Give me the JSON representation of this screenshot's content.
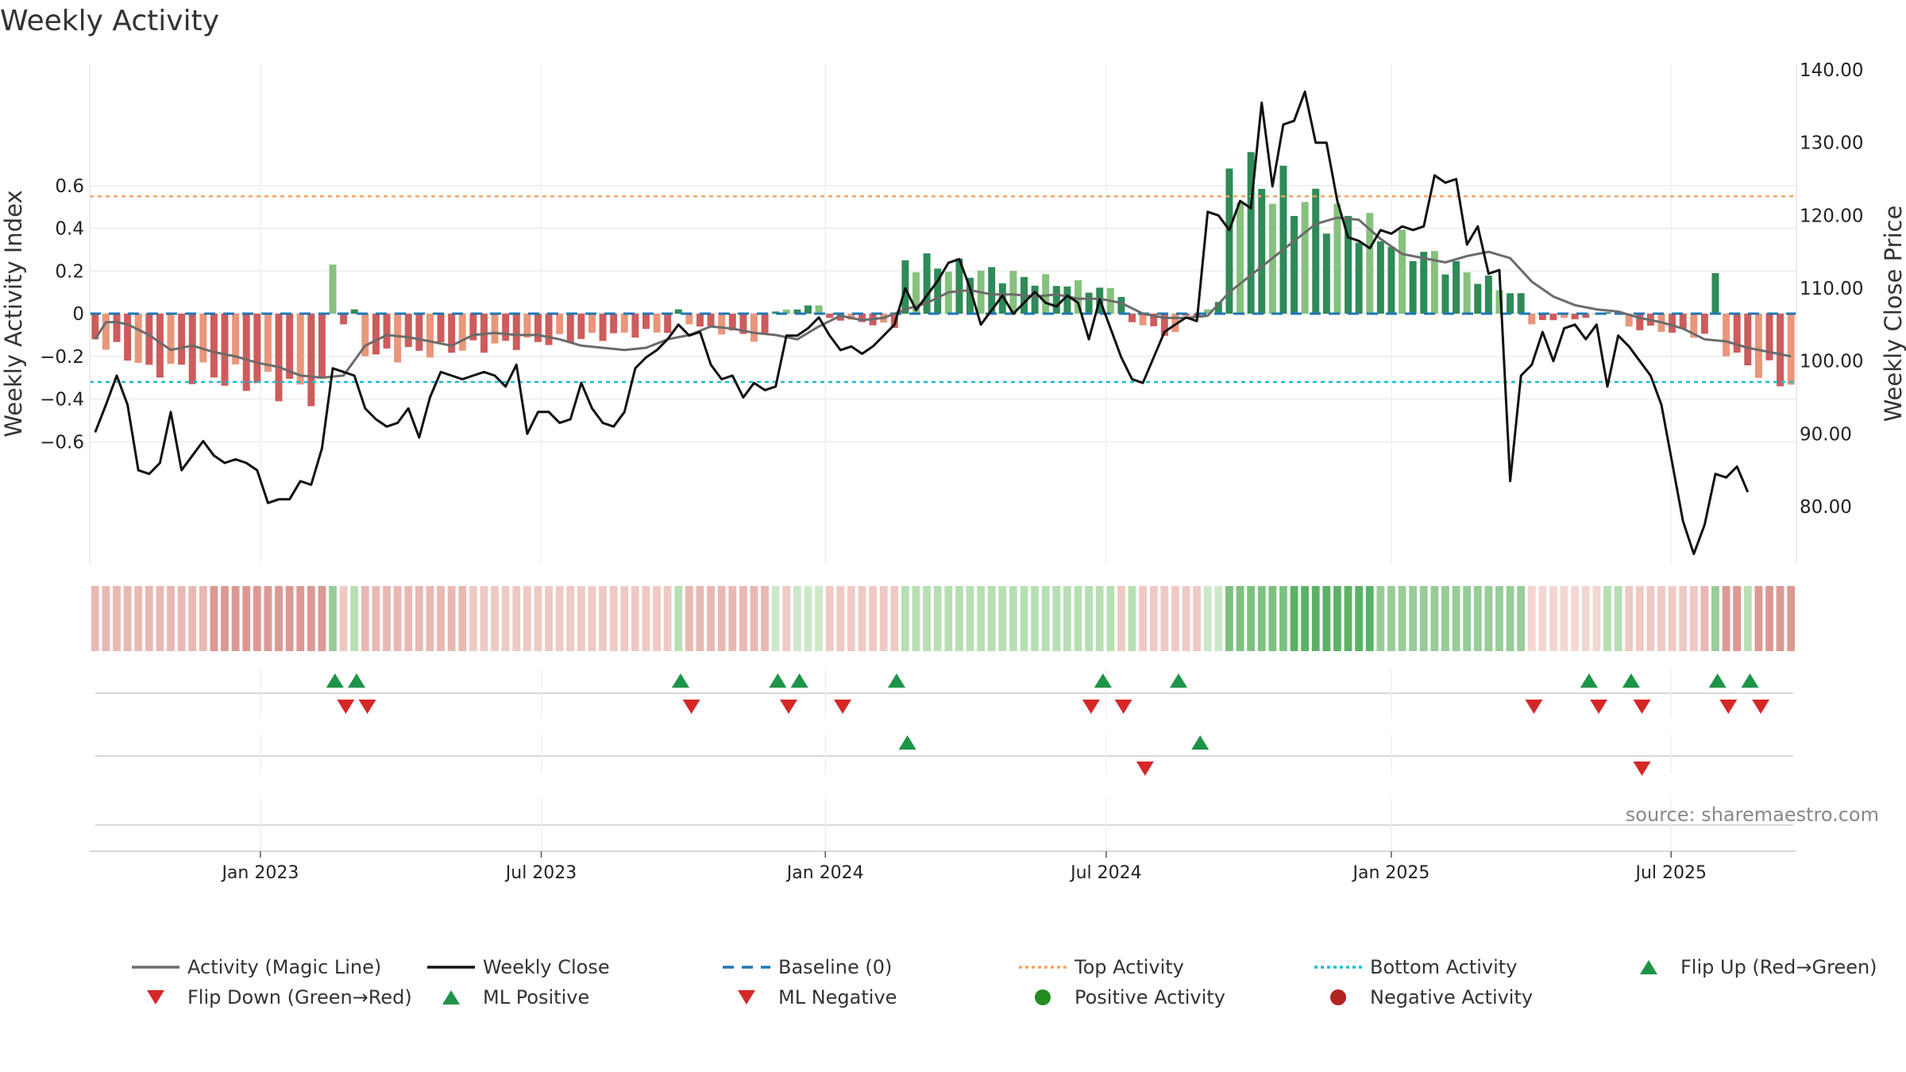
{
  "title": "Weekly Activity",
  "source": "source: sharemaestro.com",
  "colors": {
    "pos_strong": "#2e8b57",
    "pos_light": "#86c17d",
    "neg_strong": "#cd5c5c",
    "neg_light": "#e9967a",
    "magic_line": "#6b6b6b",
    "close_line": "#111111",
    "baseline": "#1f77b4",
    "top_line": "#f4a460",
    "bottom_line": "#17becf",
    "flip_up": "#1e9448",
    "flip_down": "#d62728",
    "pos_dot": "#228b22",
    "neg_dot": "#b22222"
  },
  "chart_data": {
    "type": "bar",
    "title": "Weekly Activity",
    "ylabel_left": "Weekly Activity Index",
    "ylabel_right": "Weekly Close Price",
    "ylim_left": [
      -0.73,
      0.73
    ],
    "ylim_right": [
      71,
      141
    ],
    "yticks_left": [
      "0.6",
      "0.4",
      "0.2",
      "0",
      "−0.2",
      "−0.4",
      "−0.6"
    ],
    "yticks_left_values": [
      0.6,
      0.4,
      0.2,
      0,
      -0.2,
      -0.4,
      -0.6
    ],
    "yticks_right": [
      "140.00",
      "130.00",
      "120.00",
      "110.00",
      "100.00",
      "90.00",
      "80.00"
    ],
    "yticks_right_values": [
      140,
      130,
      120,
      110,
      100,
      90,
      80
    ],
    "x_start_week": "2022-09-26",
    "week_count": 158,
    "xticks": [
      {
        "label": "Jan 2023",
        "week": 15.3
      },
      {
        "label": "Jul 2023",
        "week": 41.3
      },
      {
        "label": "Jan 2024",
        "week": 67.6
      },
      {
        "label": "Jul 2024",
        "week": 93.6
      },
      {
        "label": "Jan 2025",
        "week": 120.0
      },
      {
        "label": "Jul 2025",
        "week": 145.9
      }
    ],
    "top_activity": 0.55,
    "bottom_activity": -0.32,
    "baseline": 0,
    "segments": [
      {
        "from": 0,
        "to": 4,
        "start": -0.12,
        "end": -0.22
      },
      {
        "from": 5,
        "to": 21,
        "start": -0.24,
        "end": -0.37
      },
      {
        "from": 22,
        "to": 22,
        "start": 0.23,
        "end": 0.23
      },
      {
        "from": 23,
        "to": 23,
        "start": -0.05,
        "end": -0.05
      },
      {
        "from": 24,
        "to": 24,
        "start": 0.02,
        "end": 0.02
      },
      {
        "from": 25,
        "to": 53,
        "start": -0.2,
        "end": -0.08
      },
      {
        "from": 54,
        "to": 54,
        "start": 0.02,
        "end": 0.02
      },
      {
        "from": 55,
        "to": 62,
        "start": -0.05,
        "end": -0.12
      },
      {
        "from": 63,
        "to": 67,
        "start": 0.01,
        "end": 0.04
      },
      {
        "from": 68,
        "to": 74,
        "start": -0.02,
        "end": -0.06
      },
      {
        "from": 75,
        "to": 95,
        "start": 0.25,
        "end": 0.1
      },
      {
        "from": 96,
        "to": 100,
        "start": -0.04,
        "end": -0.1
      },
      {
        "from": 101,
        "to": 102,
        "start": -0.01,
        "end": -0.01
      },
      {
        "from": 103,
        "to": 104,
        "start": 0.02,
        "end": 0.05
      },
      {
        "from": 105,
        "to": 132,
        "start": 0.68,
        "end": 0.08
      },
      {
        "from": 133,
        "to": 133,
        "start": -0.05,
        "end": -0.05
      },
      {
        "from": 134,
        "to": 138,
        "start": -0.03,
        "end": -0.02
      },
      {
        "from": 139,
        "to": 141,
        "start": 0.0,
        "end": 0.01
      },
      {
        "from": 142,
        "to": 149,
        "start": -0.06,
        "end": -0.1
      },
      {
        "from": 150,
        "to": 150,
        "start": 0.19,
        "end": 0.19
      },
      {
        "from": 151,
        "to": 157,
        "start": -0.2,
        "end": -0.32
      }
    ],
    "magic_line": [
      [
        0,
        -0.12
      ],
      [
        1,
        -0.04
      ],
      [
        2,
        -0.04
      ],
      [
        3,
        -0.05
      ],
      [
        5,
        -0.1
      ],
      [
        7,
        -0.17
      ],
      [
        9,
        -0.15
      ],
      [
        11,
        -0.18
      ],
      [
        13,
        -0.2
      ],
      [
        15,
        -0.23
      ],
      [
        17,
        -0.25
      ],
      [
        19,
        -0.29
      ],
      [
        21,
        -0.3
      ],
      [
        23,
        -0.29
      ],
      [
        25,
        -0.15
      ],
      [
        27,
        -0.1
      ],
      [
        29,
        -0.11
      ],
      [
        31,
        -0.13
      ],
      [
        33,
        -0.15
      ],
      [
        35,
        -0.1
      ],
      [
        37,
        -0.09
      ],
      [
        39,
        -0.1
      ],
      [
        41,
        -0.1
      ],
      [
        43,
        -0.12
      ],
      [
        45,
        -0.15
      ],
      [
        47,
        -0.16
      ],
      [
        49,
        -0.17
      ],
      [
        51,
        -0.16
      ],
      [
        53,
        -0.12
      ],
      [
        55,
        -0.1
      ],
      [
        57,
        -0.06
      ],
      [
        59,
        -0.07
      ],
      [
        61,
        -0.09
      ],
      [
        63,
        -0.1
      ],
      [
        65,
        -0.12
      ],
      [
        67,
        -0.06
      ],
      [
        69,
        -0.01
      ],
      [
        71,
        -0.03
      ],
      [
        73,
        -0.02
      ],
      [
        75,
        0.02
      ],
      [
        77,
        0.05
      ],
      [
        79,
        0.1
      ],
      [
        81,
        0.11
      ],
      [
        83,
        0.09
      ],
      [
        85,
        0.09
      ],
      [
        87,
        0.08
      ],
      [
        89,
        0.09
      ],
      [
        91,
        0.07
      ],
      [
        93,
        0.07
      ],
      [
        95,
        0.05
      ],
      [
        97,
        0.0
      ],
      [
        99,
        -0.02
      ],
      [
        101,
        -0.02
      ],
      [
        103,
        -0.01
      ],
      [
        105,
        0.1
      ],
      [
        107,
        0.18
      ],
      [
        109,
        0.26
      ],
      [
        111,
        0.34
      ],
      [
        113,
        0.42
      ],
      [
        115,
        0.45
      ],
      [
        117,
        0.44
      ],
      [
        119,
        0.35
      ],
      [
        121,
        0.28
      ],
      [
        123,
        0.26
      ],
      [
        125,
        0.24
      ],
      [
        127,
        0.27
      ],
      [
        129,
        0.29
      ],
      [
        131,
        0.26
      ],
      [
        133,
        0.15
      ],
      [
        135,
        0.08
      ],
      [
        137,
        0.04
      ],
      [
        139,
        0.02
      ],
      [
        141,
        0.01
      ],
      [
        143,
        -0.02
      ],
      [
        145,
        -0.04
      ],
      [
        147,
        -0.07
      ],
      [
        149,
        -0.12
      ],
      [
        151,
        -0.13
      ],
      [
        153,
        -0.16
      ],
      [
        155,
        -0.18
      ],
      [
        157,
        -0.2
      ]
    ],
    "weekly_close": [
      [
        0,
        90.2
      ],
      [
        1,
        94
      ],
      [
        2,
        98
      ],
      [
        3,
        94
      ],
      [
        4,
        85
      ],
      [
        5,
        84.5
      ],
      [
        6,
        86
      ],
      [
        7,
        93
      ],
      [
        8,
        85
      ],
      [
        9,
        87
      ],
      [
        10,
        89
      ],
      [
        11,
        87
      ],
      [
        12,
        86
      ],
      [
        13,
        86.5
      ],
      [
        14,
        86
      ],
      [
        15,
        85
      ],
      [
        16,
        80.5
      ],
      [
        17,
        81
      ],
      [
        18,
        81
      ],
      [
        19,
        83.5
      ],
      [
        20,
        83
      ],
      [
        21,
        88
      ],
      [
        22,
        99
      ],
      [
        23,
        98.5
      ],
      [
        24,
        98
      ],
      [
        25,
        93.5
      ],
      [
        26,
        92
      ],
      [
        27,
        91
      ],
      [
        28,
        91.5
      ],
      [
        29,
        93.5
      ],
      [
        30,
        89.5
      ],
      [
        31,
        95
      ],
      [
        32,
        98.5
      ],
      [
        33,
        98
      ],
      [
        34,
        97.5
      ],
      [
        35,
        98
      ],
      [
        36,
        98.5
      ],
      [
        37,
        98
      ],
      [
        38,
        96.5
      ],
      [
        39,
        99.5
      ],
      [
        40,
        90
      ],
      [
        41,
        93
      ],
      [
        42,
        93
      ],
      [
        43,
        91.5
      ],
      [
        44,
        92
      ],
      [
        45,
        97
      ],
      [
        46,
        93.5
      ],
      [
        47,
        91.5
      ],
      [
        48,
        91
      ],
      [
        49,
        93
      ],
      [
        50,
        99
      ],
      [
        51,
        100.5
      ],
      [
        52,
        101.5
      ],
      [
        53,
        103
      ],
      [
        54,
        105
      ],
      [
        55,
        103.5
      ],
      [
        56,
        104
      ],
      [
        57,
        99.5
      ],
      [
        58,
        97.5
      ],
      [
        59,
        98
      ],
      [
        60,
        95
      ],
      [
        61,
        97
      ],
      [
        62,
        96
      ],
      [
        63,
        96.5
      ],
      [
        64,
        103.5
      ],
      [
        65,
        103.5
      ],
      [
        66,
        104.5
      ],
      [
        67,
        106
      ],
      [
        68,
        103.5
      ],
      [
        69,
        101.5
      ],
      [
        70,
        102
      ],
      [
        71,
        101
      ],
      [
        72,
        102
      ],
      [
        73,
        103.5
      ],
      [
        74,
        105
      ],
      [
        75,
        110
      ],
      [
        76,
        107
      ],
      [
        77,
        109
      ],
      [
        78,
        111
      ],
      [
        79,
        113.5
      ],
      [
        80,
        114
      ],
      [
        81,
        110
      ],
      [
        82,
        105
      ],
      [
        83,
        107
      ],
      [
        84,
        109
      ],
      [
        85,
        106.5
      ],
      [
        86,
        108
      ],
      [
        87,
        109.5
      ],
      [
        88,
        108
      ],
      [
        89,
        107.5
      ],
      [
        90,
        109
      ],
      [
        91,
        108
      ],
      [
        92,
        103
      ],
      [
        93,
        108.5
      ],
      [
        94,
        104.5
      ],
      [
        95,
        100.5
      ],
      [
        96,
        97.5
      ],
      [
        97,
        97
      ],
      [
        98,
        100.5
      ],
      [
        99,
        104
      ],
      [
        100,
        105
      ],
      [
        101,
        106
      ],
      [
        102,
        105.5
      ],
      [
        103,
        120.5
      ],
      [
        104,
        120
      ],
      [
        105,
        118
      ],
      [
        106,
        122
      ],
      [
        107,
        121
      ],
      [
        108,
        135.5
      ],
      [
        109,
        124
      ],
      [
        110,
        132.5
      ],
      [
        111,
        133
      ],
      [
        112,
        137
      ],
      [
        113,
        130
      ],
      [
        114,
        130
      ],
      [
        115,
        122
      ],
      [
        116,
        117
      ],
      [
        117,
        116.5
      ],
      [
        118,
        115.5
      ],
      [
        119,
        118
      ],
      [
        120,
        117.5
      ],
      [
        121,
        118.5
      ],
      [
        122,
        118
      ],
      [
        123,
        118.5
      ],
      [
        124,
        125.5
      ],
      [
        125,
        124.5
      ],
      [
        126,
        125
      ],
      [
        127,
        116
      ],
      [
        128,
        118.5
      ],
      [
        129,
        112
      ],
      [
        130,
        112.5
      ],
      [
        131,
        83.5
      ],
      [
        132,
        98
      ],
      [
        133,
        99.5
      ],
      [
        134,
        104
      ],
      [
        135,
        100
      ],
      [
        136,
        104.5
      ],
      [
        137,
        105
      ],
      [
        138,
        103
      ],
      [
        139,
        105
      ],
      [
        140,
        96.5
      ],
      [
        141,
        103.5
      ],
      [
        142,
        102
      ],
      [
        143,
        100
      ],
      [
        144,
        98
      ],
      [
        145,
        94
      ],
      [
        146,
        86
      ],
      [
        147,
        78
      ],
      [
        148,
        73.5
      ],
      [
        149,
        77.5
      ],
      [
        150,
        84.5
      ],
      [
        151,
        84
      ],
      [
        152,
        85.5
      ],
      [
        153,
        82
      ]
    ],
    "strip_tiles": [
      {
        "from": 0,
        "to": 10,
        "color": "#e9b8b3"
      },
      {
        "from": 11,
        "to": 21,
        "color": "#dc9993"
      },
      {
        "from": 22,
        "to": 22,
        "color": "#98cc98"
      },
      {
        "from": 23,
        "to": 23,
        "color": "#efc9c4"
      },
      {
        "from": 24,
        "to": 24,
        "color": "#b8dfb4"
      },
      {
        "from": 25,
        "to": 34,
        "color": "#e9b8b3"
      },
      {
        "from": 35,
        "to": 53,
        "color": "#efc9c4"
      },
      {
        "from": 54,
        "to": 54,
        "color": "#b8dfb4"
      },
      {
        "from": 55,
        "to": 62,
        "color": "#e9b8b3"
      },
      {
        "from": 63,
        "to": 63,
        "color": "#cde8c9"
      },
      {
        "from": 64,
        "to": 64,
        "color": "#efc9c4"
      },
      {
        "from": 65,
        "to": 67,
        "color": "#cde8c9"
      },
      {
        "from": 68,
        "to": 74,
        "color": "#efc9c4"
      },
      {
        "from": 75,
        "to": 94,
        "color": "#b8dfb4"
      },
      {
        "from": 95,
        "to": 95,
        "color": "#efc9c4"
      },
      {
        "from": 96,
        "to": 96,
        "color": "#b8dfb4"
      },
      {
        "from": 97,
        "to": 102,
        "color": "#efc9c4"
      },
      {
        "from": 103,
        "to": 104,
        "color": "#cde8c9"
      },
      {
        "from": 105,
        "to": 110,
        "color": "#7cc27e"
      },
      {
        "from": 111,
        "to": 118,
        "color": "#5bb264"
      },
      {
        "from": 119,
        "to": 132,
        "color": "#98cc98"
      },
      {
        "from": 133,
        "to": 139,
        "color": "#f3d6d2"
      },
      {
        "from": 140,
        "to": 141,
        "color": "#b8dfb4"
      },
      {
        "from": 142,
        "to": 148,
        "color": "#efc9c4"
      },
      {
        "from": 149,
        "to": 149,
        "color": "#e9b8b3"
      },
      {
        "from": 150,
        "to": 150,
        "color": "#98cc98"
      },
      {
        "from": 151,
        "to": 152,
        "color": "#dc9993"
      },
      {
        "from": 153,
        "to": 153,
        "color": "#b8dfb4"
      },
      {
        "from": 154,
        "to": 157,
        "color": "#dc9993"
      }
    ],
    "flip_up": [
      22.2,
      24.2,
      54.2,
      63.2,
      65.2,
      74.2,
      93.3,
      100.3,
      138.3,
      142.2,
      150.2,
      153.2
    ],
    "flip_down": [
      23.2,
      25.2,
      55.2,
      64.2,
      69.2,
      92.2,
      95.2,
      133.2,
      139.2,
      143.2,
      151.2,
      154.2
    ],
    "ml_positive": [
      75.2,
      102.3
    ],
    "ml_negative": [
      97.2,
      143.2
    ],
    "positive_activity": [],
    "negative_activity": []
  },
  "legend": [
    {
      "label": "Activity (Magic Line)",
      "kind": "line",
      "color": "#6b6b6b",
      "dash": ""
    },
    {
      "label": "Weekly Close",
      "kind": "line",
      "color": "#111111",
      "dash": ""
    },
    {
      "label": "Baseline (0)",
      "kind": "line",
      "color": "#1f77b4",
      "dash": "14 10"
    },
    {
      "label": "Top Activity",
      "kind": "line",
      "color": "#f4a460",
      "dash": "4 4"
    },
    {
      "label": "Bottom Activity",
      "kind": "line",
      "color": "#17becf",
      "dash": "4 4"
    },
    {
      "label": "Flip Up (Red→Green)",
      "kind": "up",
      "color": "#1e9448",
      "dash": ""
    },
    {
      "label": "Flip Down (Green→Red)",
      "kind": "down",
      "color": "#d62728",
      "dash": ""
    },
    {
      "label": "ML Positive",
      "kind": "up",
      "color": "#1e9448",
      "dash": ""
    },
    {
      "label": "ML Negative",
      "kind": "down",
      "color": "#d62728",
      "dash": ""
    },
    {
      "label": "Positive Activity",
      "kind": "dot",
      "color": "#228b22",
      "dash": ""
    },
    {
      "label": "Negative Activity",
      "kind": "dot",
      "color": "#b22222",
      "dash": ""
    }
  ]
}
